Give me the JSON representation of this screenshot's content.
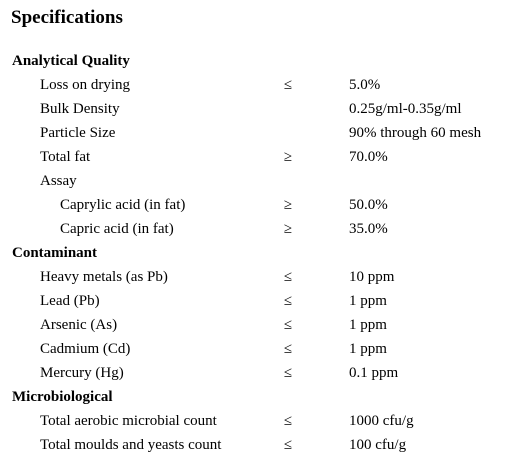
{
  "page": {
    "title": "Specifications"
  },
  "rows": [
    {
      "type": "section",
      "label": "Analytical Quality"
    },
    {
      "type": "item",
      "level": 1,
      "label": "Loss on drying",
      "op": "≤",
      "value": "5.0%"
    },
    {
      "type": "item",
      "level": 1,
      "label": "Bulk Density",
      "op": "",
      "value": "0.25g/ml-0.35g/ml"
    },
    {
      "type": "item",
      "level": 1,
      "label": "Particle Size",
      "op": "",
      "value": "90% through 60 mesh"
    },
    {
      "type": "item",
      "level": 1,
      "label": "Total fat",
      "op": "≥",
      "value": "70.0%"
    },
    {
      "type": "item",
      "level": 1,
      "label": "Assay",
      "op": "",
      "value": ""
    },
    {
      "type": "item",
      "level": 2,
      "label": "Caprylic acid (in fat)",
      "op": "≥",
      "value": "50.0%"
    },
    {
      "type": "item",
      "level": 2,
      "label": "Capric acid (in fat)",
      "op": "≥",
      "value": "35.0%"
    },
    {
      "type": "section",
      "label": "Contaminant"
    },
    {
      "type": "item",
      "level": 1,
      "label": "Heavy metals (as Pb)",
      "op": "≤",
      "value": "10 ppm"
    },
    {
      "type": "item",
      "level": 1,
      "label": "Lead (Pb)",
      "op": "≤",
      "value": "1 ppm"
    },
    {
      "type": "item",
      "level": 1,
      "label": "Arsenic (As)",
      "op": "≤",
      "value": "1 ppm"
    },
    {
      "type": "item",
      "level": 1,
      "label": "Cadmium (Cd)",
      "op": "≤",
      "value": "1 ppm"
    },
    {
      "type": "item",
      "level": 1,
      "label": "Mercury (Hg)",
      "op": "≤",
      "value": "0.1 ppm"
    },
    {
      "type": "section",
      "label": "Microbiological"
    },
    {
      "type": "item",
      "level": 1,
      "label": "Total aerobic microbial count",
      "op": "≤",
      "value": "1000 cfu/g"
    },
    {
      "type": "item",
      "level": 1,
      "label": "Total moulds and yeasts count",
      "op": "≤",
      "value": "100 cfu/g"
    }
  ]
}
